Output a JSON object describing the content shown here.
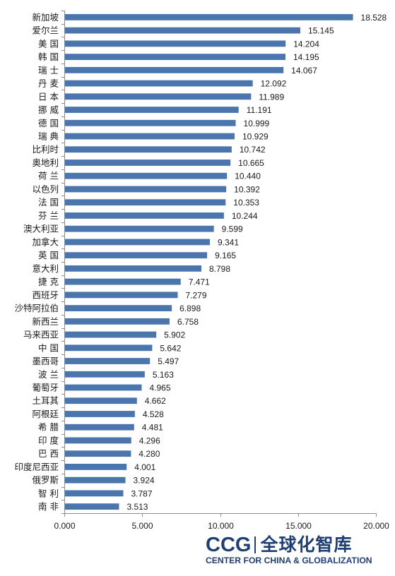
{
  "colors": {
    "bar": "#4a76ad",
    "bar_edge": "#3d6599",
    "axis": "#8c8c8c",
    "text": "#1a1a1a",
    "brand": "#1f3f72"
  },
  "chart_data": {
    "type": "bar",
    "orientation": "horizontal",
    "categories": [
      "新加坡",
      "爱尔兰",
      "美 国",
      "韩 国",
      "瑞 士",
      "丹 麦",
      "日 本",
      "挪 威",
      "德 国",
      "瑞 典",
      "比利时",
      "奥地利",
      "荷 兰",
      "以色列",
      "法 国",
      "芬 兰",
      "澳大利亚",
      "加拿大",
      "英 国",
      "意大利",
      "捷 克",
      "西班牙",
      "沙特阿拉伯",
      "新西兰",
      "马来西亚",
      "中 国",
      "墨西哥",
      "波 兰",
      "葡萄牙",
      "土耳其",
      "阿根廷",
      "希 腊",
      "印 度",
      "巴 西",
      "印度尼西亚",
      "俄罗斯",
      "智 利",
      "南 非"
    ],
    "values": [
      18.528,
      15.145,
      14.204,
      14.195,
      14.067,
      12.092,
      11.989,
      11.191,
      10.999,
      10.929,
      10.742,
      10.665,
      10.44,
      10.392,
      10.353,
      10.244,
      9.599,
      9.341,
      9.165,
      8.798,
      7.471,
      7.279,
      6.898,
      6.758,
      5.902,
      5.642,
      5.497,
      5.163,
      4.965,
      4.662,
      4.528,
      4.481,
      4.296,
      4.28,
      4.001,
      3.924,
      3.787,
      3.513
    ],
    "value_labels": [
      "18.528",
      "15.145",
      "14.204",
      "14.195",
      "14.067",
      "12.092",
      "11.989",
      "11.191",
      "10.999",
      "10.929",
      "10.742",
      "10.665",
      "10.440",
      "10.392",
      "10.353",
      "10.244",
      "9.599",
      "9.341",
      "9.165",
      "8.798",
      "7.471",
      "7.279",
      "6.898",
      "6.758",
      "5.902",
      "5.642",
      "5.497",
      "5.163",
      "4.965",
      "4.662",
      "4.528",
      "4.481",
      "4.296",
      "4.280",
      "4.001",
      "3.924",
      "3.787",
      "3.513"
    ],
    "x_ticks": [
      0,
      5,
      10,
      15,
      20
    ],
    "x_tick_labels": [
      "0.000",
      "5.000",
      "10.000",
      "15.000",
      "20.000"
    ],
    "xlim": [
      0,
      20
    ],
    "grid": false,
    "legend": "none"
  },
  "logo": {
    "ccg": "CCG",
    "chinese_name": "全球化智库",
    "english_name": "CENTER FOR CHINA & GLOBALIZATION"
  }
}
